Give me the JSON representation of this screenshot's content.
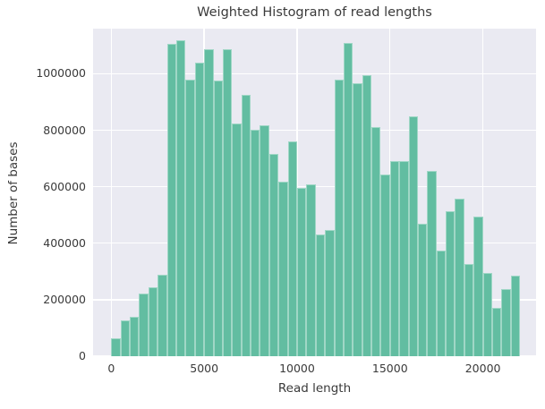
{
  "chart_data": {
    "type": "bar",
    "subtype": "histogram",
    "title": "Weighted Histogram of read lengths",
    "xlabel": "Read length",
    "ylabel": "Number of bases",
    "bin_start": 0,
    "bin_width": 500,
    "values": [
      62000,
      126000,
      138000,
      223000,
      243000,
      289000,
      1106000,
      1118000,
      978000,
      1040000,
      1086000,
      975000,
      1086000,
      823000,
      927000,
      802000,
      818000,
      717000,
      617000,
      760000,
      597000,
      610000,
      432000,
      448000,
      980000,
      1109000,
      966000,
      995000,
      812000,
      643000,
      690000,
      690000,
      848000,
      469000,
      656000,
      373000,
      514000,
      559000,
      326000,
      493000,
      296000,
      170000,
      237000,
      285000
    ],
    "xlim": [
      -980,
      22860
    ],
    "ylim": [
      0,
      1160000
    ],
    "x_ticks": [
      0,
      5000,
      10000,
      15000,
      20000
    ],
    "x_tick_labels": [
      "0",
      "5000",
      "10000",
      "15000",
      "20000"
    ],
    "y_ticks": [
      0,
      200000,
      400000,
      600000,
      800000,
      1000000
    ],
    "y_tick_labels": [
      "0",
      "200000",
      "400000",
      "600000",
      "800000",
      "1000000"
    ],
    "grid": "on",
    "legend": "none",
    "colors": {
      "bar_fill": "#62bda1",
      "plot_background": "#eaeaf2",
      "gridline": "#ffffff",
      "text": "#3a3a3a"
    }
  }
}
